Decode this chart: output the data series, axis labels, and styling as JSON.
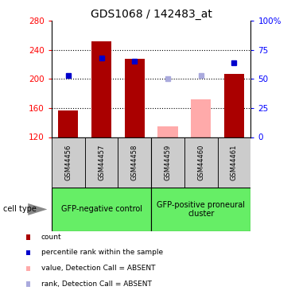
{
  "title": "GDS1068 / 142483_at",
  "samples": [
    "GSM44456",
    "GSM44457",
    "GSM44458",
    "GSM44459",
    "GSM44460",
    "GSM44461"
  ],
  "bar_values": [
    157,
    252,
    228,
    null,
    null,
    207
  ],
  "bar_absent_values": [
    null,
    null,
    null,
    135,
    172,
    null
  ],
  "bar_color": "#aa0000",
  "bar_absent_color": "#ffaaaa",
  "rank_values": [
    53,
    68,
    65,
    50,
    53,
    64
  ],
  "rank_absent": [
    false,
    false,
    false,
    true,
    true,
    false
  ],
  "rank_color_present": "#0000cc",
  "rank_color_absent": "#aaaadd",
  "ymin": 120,
  "ymax": 280,
  "yticks": [
    120,
    160,
    200,
    240,
    280
  ],
  "y2min": 0,
  "y2max": 100,
  "y2ticks": [
    0,
    25,
    50,
    75,
    100
  ],
  "y2ticklabels": [
    "0",
    "25",
    "50",
    "75",
    "100%"
  ],
  "dotted_lines": [
    160,
    200,
    240
  ],
  "group1_label": "GFP-negative control",
  "group2_label": "GFP-positive proneural\ncluster",
  "group_color": "#66ee66",
  "cell_type_label": "cell type",
  "legend_items": [
    {
      "color": "#aa0000",
      "label": "count"
    },
    {
      "color": "#0000cc",
      "label": "percentile rank within the sample"
    },
    {
      "color": "#ffaaaa",
      "label": "value, Detection Call = ABSENT"
    },
    {
      "color": "#aaaadd",
      "label": "rank, Detection Call = ABSENT"
    }
  ],
  "bar_width": 0.6
}
